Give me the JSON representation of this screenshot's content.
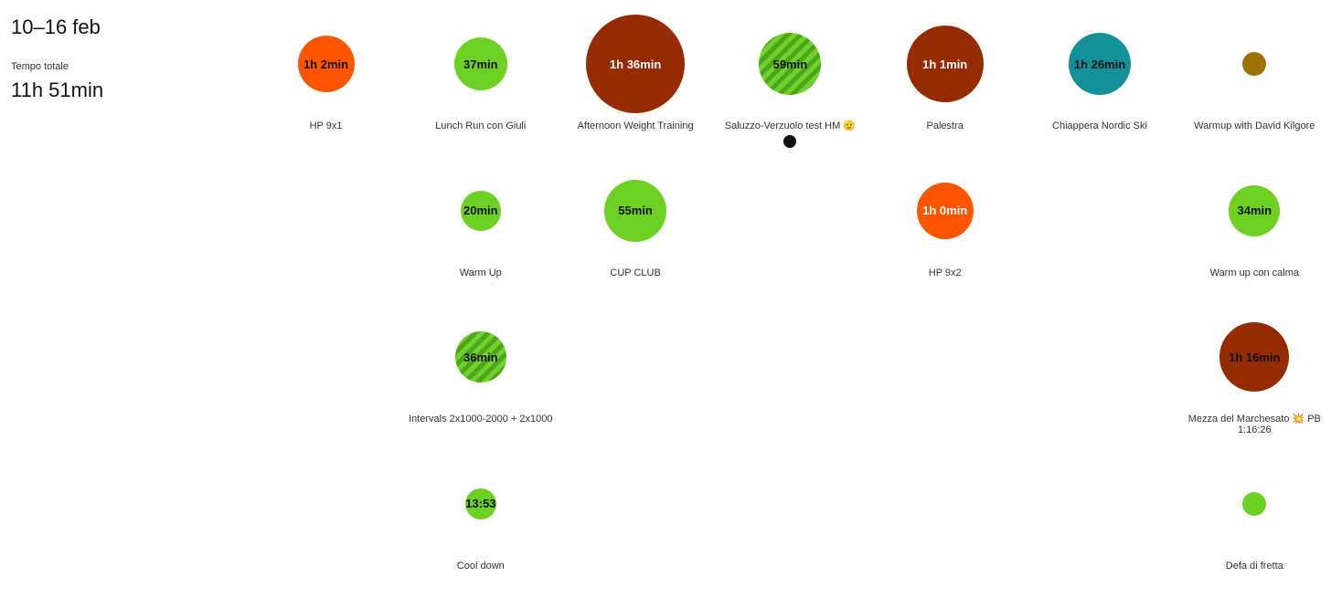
{
  "summary": {
    "week": "10–16 feb",
    "total_label": "Tempo totale",
    "total_value": "11h 51min"
  },
  "colors": {
    "run": "#6dd124",
    "strength": "#962b00",
    "other": "#ff5500",
    "ski": "#139198",
    "yoga": "#9c7300"
  },
  "days": [
    {
      "activities": [
        {
          "name": "HP 9x1",
          "duration": "1h 2min",
          "size": 62,
          "color": "#ff5500",
          "text": "dark"
        }
      ]
    },
    {
      "activities": [
        {
          "name": "Lunch Run con Giuli",
          "duration": "37min",
          "size": 58,
          "color": "#6dd124",
          "text": "dark"
        },
        {
          "name": "Warm Up",
          "duration": "20min",
          "size": 44,
          "color": "#6dd124",
          "text": "dark"
        },
        {
          "name": "Intervals 2x1000-2000 + 2x1000",
          "duration": "36min",
          "size": 56,
          "color": "striped",
          "text": "dark"
        },
        {
          "name": "Cool down",
          "duration": "13:53",
          "size": 34,
          "color": "#6dd124",
          "text": "dark"
        }
      ]
    },
    {
      "activities": [
        {
          "name": "Afternoon Weight Training",
          "duration": "1h 36min",
          "size": 108,
          "color": "#962b00",
          "text": "light"
        },
        {
          "name": "CUP CLUB",
          "duration": "55min",
          "size": 68,
          "color": "#6dd124",
          "text": "dark"
        }
      ]
    },
    {
      "activities": [
        {
          "name": "Saluzzo-Verzuolo test HM 🫡",
          "duration": "59min",
          "size": 68,
          "color": "striped",
          "text": "dark",
          "dot": true
        }
      ]
    },
    {
      "activities": [
        {
          "name": "Palestra",
          "duration": "1h 1min",
          "size": 84,
          "color": "#962b00",
          "text": "light"
        },
        {
          "name": "HP 9x2",
          "duration": "1h 0min",
          "size": 62,
          "color": "#ff5500",
          "text": "light"
        }
      ]
    },
    {
      "activities": [
        {
          "name": "Chiappera Nordic Ski",
          "duration": "1h 26min",
          "size": 68,
          "color": "#139198",
          "text": "dark"
        }
      ]
    },
    {
      "activities": [
        {
          "name": "Warmup with David Kilgore",
          "duration": "",
          "size": 26,
          "color": "#9c7300",
          "text": "dark"
        },
        {
          "name": "Warm up con calma",
          "duration": "34min",
          "size": 56,
          "color": "#6dd124",
          "text": "dark"
        },
        {
          "name": "Mezza del Marchesato 💥 PB 1:16:26",
          "duration": "1h 16min",
          "size": 76,
          "color": "#962b00",
          "text": "dark"
        },
        {
          "name": "Defa di fretta",
          "duration": "",
          "size": 26,
          "color": "#6dd124",
          "text": "dark"
        }
      ]
    }
  ]
}
